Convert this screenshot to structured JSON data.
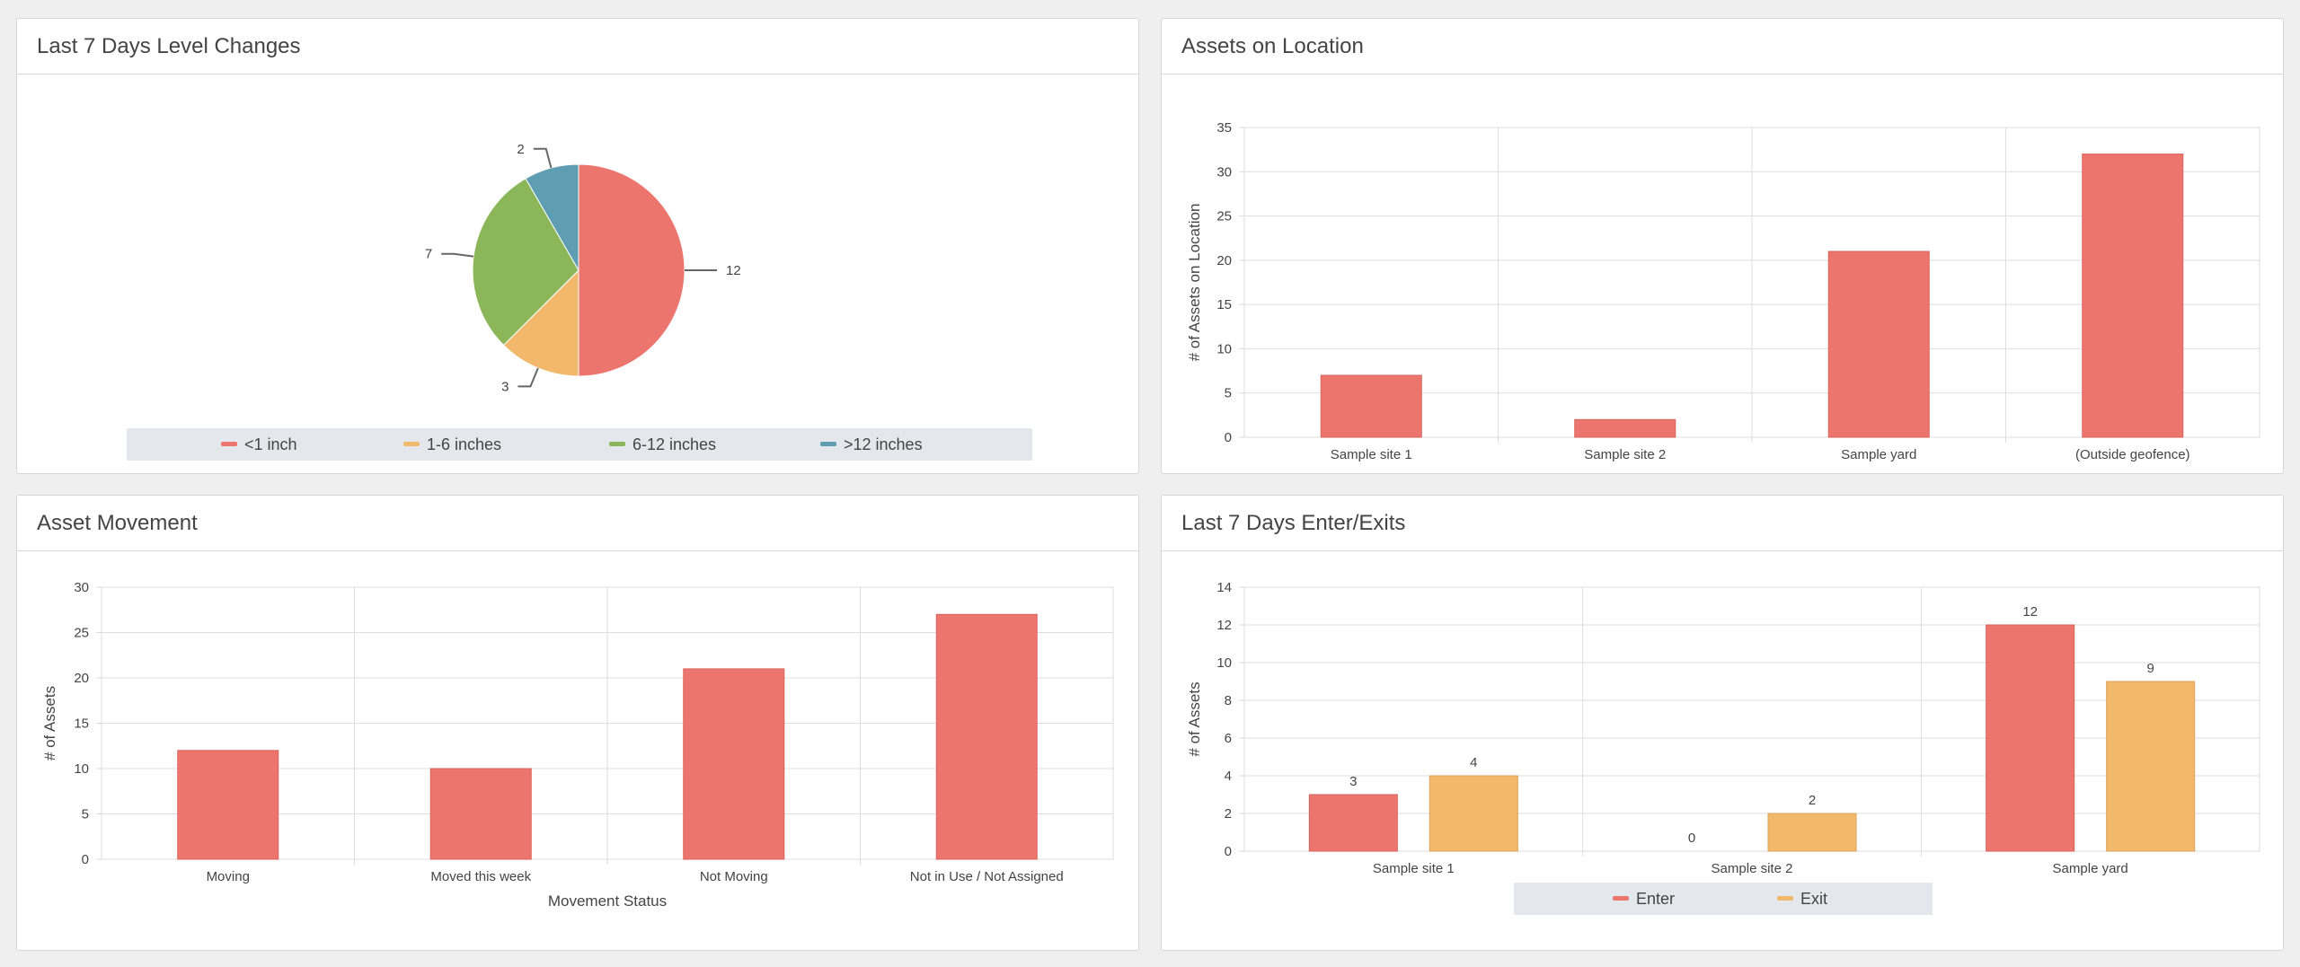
{
  "panels": {
    "level_changes": {
      "title": "Last 7 Days Level Changes"
    },
    "assets_location": {
      "title": "Assets on Location"
    },
    "asset_movement": {
      "title": "Asset Movement"
    },
    "enter_exits": {
      "title": "Last 7 Days Enter/Exits"
    }
  },
  "colors": {
    "red": "#ec766e",
    "orange": "#f2b86b",
    "green": "#8bb75a",
    "blue": "#5f9db3",
    "grid": "#dddddd",
    "legend_bg": "#e4e7ec"
  },
  "chart_data": [
    {
      "id": "level_changes",
      "type": "pie",
      "title": "Last 7 Days Level Changes",
      "categories": [
        "<1 inch",
        "1-6 inches",
        "6-12 inches",
        ">12 inches"
      ],
      "values": [
        12,
        3,
        7,
        2
      ],
      "legend": "bottom"
    },
    {
      "id": "assets_location",
      "type": "bar",
      "title": "Assets on Location",
      "categories": [
        "Sample site 1",
        "Sample site 2",
        "Sample yard",
        "(Outside geofence)"
      ],
      "values": [
        7,
        2,
        21,
        32
      ],
      "xlabel": "",
      "ylabel": "# of Assets on Location",
      "ylim": [
        0,
        35
      ],
      "yticks": [
        0,
        5,
        10,
        15,
        20,
        25,
        30,
        35
      ],
      "grid": true
    },
    {
      "id": "asset_movement",
      "type": "bar",
      "title": "Asset Movement",
      "categories": [
        "Moving",
        "Moved this week",
        "Not Moving",
        "Not in Use / Not Assigned"
      ],
      "values": [
        12,
        10,
        21,
        27
      ],
      "xlabel": "Movement Status",
      "ylabel": "# of Assets",
      "ylim": [
        0,
        30
      ],
      "yticks": [
        0,
        5,
        10,
        15,
        20,
        25,
        30
      ],
      "grid": true
    },
    {
      "id": "enter_exits",
      "type": "bar",
      "title": "Last 7 Days Enter/Exits",
      "categories": [
        "Sample site 1",
        "Sample site 2",
        "Sample yard"
      ],
      "series": [
        {
          "name": "Enter",
          "values": [
            3,
            0,
            12
          ]
        },
        {
          "name": "Exit",
          "values": [
            4,
            2,
            9
          ]
        }
      ],
      "xlabel": "",
      "ylabel": "# of Assets",
      "ylim": [
        0,
        14
      ],
      "yticks": [
        0,
        2,
        4,
        6,
        8,
        10,
        12,
        14
      ],
      "grid": true,
      "legend": "bottom",
      "data_labels": true
    }
  ]
}
